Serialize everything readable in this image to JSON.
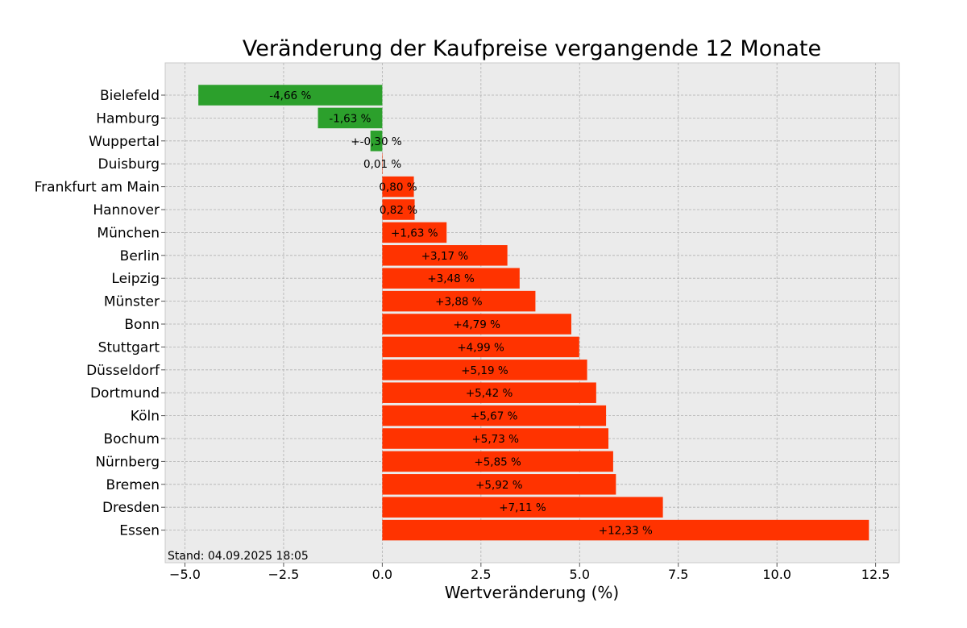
{
  "chart_data": {
    "type": "bar",
    "orientation": "horizontal",
    "title": "Veränderung der Kaufpreise vergangende 12 Monate",
    "xlabel": "Wertveränderung (%)",
    "ylabel": "",
    "xlim": [
      -5.5,
      13.1
    ],
    "xticks": [
      -5.0,
      -2.5,
      0.0,
      2.5,
      5.0,
      7.5,
      10.0,
      12.5
    ],
    "xtick_labels": [
      "−5.0",
      "−2.5",
      "0.0",
      "2.5",
      "5.0",
      "7.5",
      "10.0",
      "12.5"
    ],
    "grid": true,
    "footnote": "Stand: 04.09.2025 18:05",
    "colors": {
      "negative": "#2ca02c",
      "positive": "#ff3300",
      "plot_background": "#ebebeb",
      "grid": "#b0b0b0"
    },
    "categories": [
      "Bielefeld",
      "Hamburg",
      "Wuppertal",
      "Duisburg",
      "Frankfurt am Main",
      "Hannover",
      "München",
      "Berlin",
      "Leipzig",
      "Münster",
      "Bonn",
      "Stuttgart",
      "Düsseldorf",
      "Dortmund",
      "Köln",
      "Bochum",
      "Nürnberg",
      "Bremen",
      "Dresden",
      "Essen"
    ],
    "values": [
      -4.66,
      -1.63,
      -0.3,
      0.01,
      0.8,
      0.82,
      1.63,
      3.17,
      3.48,
      3.88,
      4.79,
      4.99,
      5.19,
      5.42,
      5.67,
      5.73,
      5.85,
      5.92,
      7.11,
      12.33
    ],
    "data_labels": [
      "-4,66 %",
      "-1,63 %",
      "+-0,30 %",
      "0,01 %",
      "0,80 %",
      "0,82 %",
      "+1,63 %",
      "+3,17 %",
      "+3,48 %",
      "+3,88 %",
      "+4,79 %",
      "+4,99 %",
      "+5,19 %",
      "+5,42 %",
      "+5,67 %",
      "+5,73 %",
      "+5,85 %",
      "+5,92 %",
      "+7,11 %",
      "+12,33 %"
    ]
  }
}
